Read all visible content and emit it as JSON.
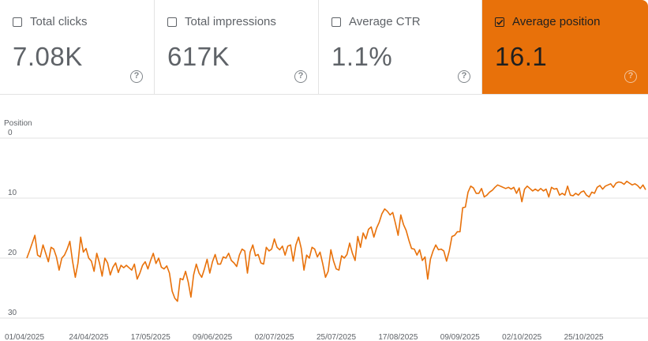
{
  "metrics": [
    {
      "label": "Total clicks",
      "value": "7.08K",
      "checked": false
    },
    {
      "label": "Total impressions",
      "value": "617K",
      "checked": false
    },
    {
      "label": "Average CTR",
      "value": "1.1%",
      "checked": false
    },
    {
      "label": "Average position",
      "value": "16.1",
      "checked": true
    }
  ],
  "help_glyph": "?",
  "colors": {
    "active_card": "#e8710a",
    "line": "#e8710a",
    "grid": "#e0e0e0"
  },
  "chart_data": {
    "type": "line",
    "ylabel": "Position",
    "y_inverted": true,
    "ylim": [
      0,
      30
    ],
    "yticks": [
      0,
      10,
      20,
      30
    ],
    "x_start": "2025-04-01",
    "xticks": [
      "01/04/2025",
      "24/04/2025",
      "17/05/2025",
      "09/06/2025",
      "02/07/2025",
      "25/07/2025",
      "17/08/2025",
      "09/09/2025",
      "02/10/2025",
      "25/10/2025"
    ],
    "series": [
      {
        "color": "#e8710a",
        "values": [
          20.0,
          18.8,
          17.5,
          16.2,
          19.5,
          19.8,
          17.8,
          19.2,
          20.6,
          18.2,
          18.5,
          19.8,
          22.0,
          20.0,
          19.5,
          18.5,
          17.2,
          20.5,
          23.2,
          20.8,
          16.5,
          19.0,
          18.4,
          20.0,
          20.5,
          22.2,
          19.2,
          20.8,
          23.0,
          20.0,
          20.8,
          22.8,
          21.5,
          20.8,
          22.4,
          21.2,
          21.6,
          21.2,
          21.6,
          22.0,
          21.0,
          23.5,
          22.5,
          21.2,
          20.6,
          21.8,
          20.4,
          19.2,
          20.9,
          20.0,
          21.5,
          21.8,
          21.3,
          22.5,
          25.5,
          26.7,
          27.2,
          23.4,
          23.6,
          22.2,
          24.0,
          26.5,
          22.8,
          21.0,
          22.5,
          23.2,
          21.8,
          20.2,
          22.5,
          20.6,
          19.4,
          21.0,
          21.0,
          19.8,
          20.0,
          19.2,
          20.4,
          20.8,
          21.4,
          19.5,
          18.5,
          18.8,
          22.5,
          19.0,
          17.8,
          19.6,
          19.4,
          20.8,
          21.0,
          18.2,
          18.8,
          18.5,
          16.8,
          18.2,
          18.6,
          18.0,
          19.5,
          18.0,
          17.8,
          20.5,
          17.8,
          16.5,
          18.4,
          22.0,
          19.5,
          20.0,
          18.2,
          18.5,
          19.8,
          19.0,
          21.0,
          23.2,
          22.2,
          18.6,
          20.5,
          21.8,
          22.0,
          19.6,
          20.0,
          19.4,
          17.5,
          19.2,
          20.4,
          16.4,
          18.2,
          15.8,
          16.8,
          15.2,
          14.8,
          16.5,
          15.0,
          14.0,
          12.6,
          11.8,
          12.2,
          12.8,
          12.4,
          14.2,
          16.2,
          12.8,
          14.4,
          15.4,
          17.0,
          18.4,
          18.5,
          19.5,
          18.6,
          20.4,
          19.8,
          23.5,
          20.2,
          18.8,
          17.8,
          18.6,
          18.5,
          18.8,
          20.5,
          18.8,
          16.4,
          16.2,
          15.6,
          15.6,
          11.6,
          11.5,
          9.0,
          8.0,
          8.3,
          9.2,
          9.2,
          8.4,
          9.8,
          9.5,
          9.0,
          8.7,
          8.2,
          7.8,
          8.0,
          8.2,
          8.4,
          8.2,
          8.5,
          8.2,
          9.2,
          8.3,
          10.6,
          8.5,
          8.0,
          8.4,
          8.8,
          8.5,
          8.8,
          8.4,
          8.8,
          8.5,
          9.8,
          8.2,
          8.5,
          8.4,
          9.5,
          9.2,
          9.5,
          8.0,
          9.5,
          9.6,
          9.2,
          9.5,
          9.0,
          8.8,
          9.5,
          9.8,
          9.0,
          9.2,
          8.2,
          7.9,
          8.5,
          8.0,
          7.8,
          7.6,
          8.2,
          7.5,
          7.3,
          7.4,
          7.7,
          7.2,
          7.5,
          7.8,
          7.6,
          7.9,
          8.4,
          7.8,
          8.6
        ]
      }
    ]
  }
}
